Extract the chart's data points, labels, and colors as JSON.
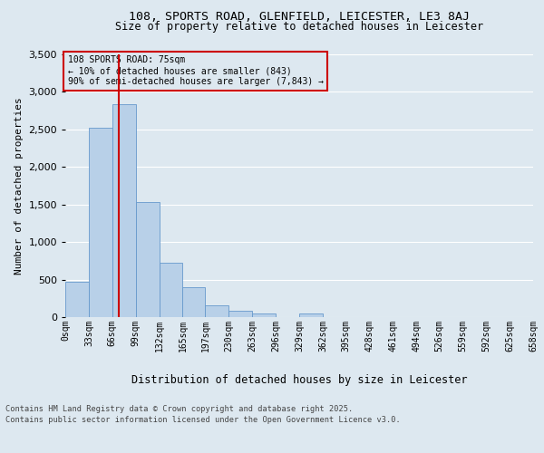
{
  "title_line1": "108, SPORTS ROAD, GLENFIELD, LEICESTER, LE3 8AJ",
  "title_line2": "Size of property relative to detached houses in Leicester",
  "xlabel": "Distribution of detached houses by size in Leicester",
  "ylabel": "Number of detached properties",
  "annotation_line1": "108 SPORTS ROAD: 75sqm",
  "annotation_line2": "← 10% of detached houses are smaller (843)",
  "annotation_line3": "90% of semi-detached houses are larger (7,843) →",
  "bin_edges": [
    0,
    33,
    66,
    99,
    132,
    165,
    197,
    230,
    263,
    296,
    329,
    362,
    395,
    428,
    461,
    494,
    526,
    559,
    592,
    625,
    658
  ],
  "bar_heights": [
    470,
    2520,
    2840,
    1530,
    720,
    400,
    155,
    85,
    45,
    0,
    45,
    0,
    0,
    0,
    0,
    0,
    0,
    0,
    0,
    0
  ],
  "bar_color": "#b8d0e8",
  "bar_edge_color": "#6699cc",
  "vline_x": 75,
  "vline_color": "#cc0000",
  "annotation_box_edge_color": "#cc0000",
  "background_color": "#dde8f0",
  "grid_color": "#ffffff",
  "ylim": [
    0,
    3500
  ],
  "yticks": [
    0,
    500,
    1000,
    1500,
    2000,
    2500,
    3000,
    3500
  ],
  "footer_line1": "Contains HM Land Registry data © Crown copyright and database right 2025.",
  "footer_line2": "Contains public sector information licensed under the Open Government Licence v3.0.",
  "tick_labels": [
    "0sqm",
    "33sqm",
    "66sqm",
    "99sqm",
    "132sqm",
    "165sqm",
    "197sqm",
    "230sqm",
    "263sqm",
    "296sqm",
    "329sqm",
    "362sqm",
    "395sqm",
    "428sqm",
    "461sqm",
    "494sqm",
    "526sqm",
    "559sqm",
    "592sqm",
    "625sqm",
    "658sqm"
  ]
}
